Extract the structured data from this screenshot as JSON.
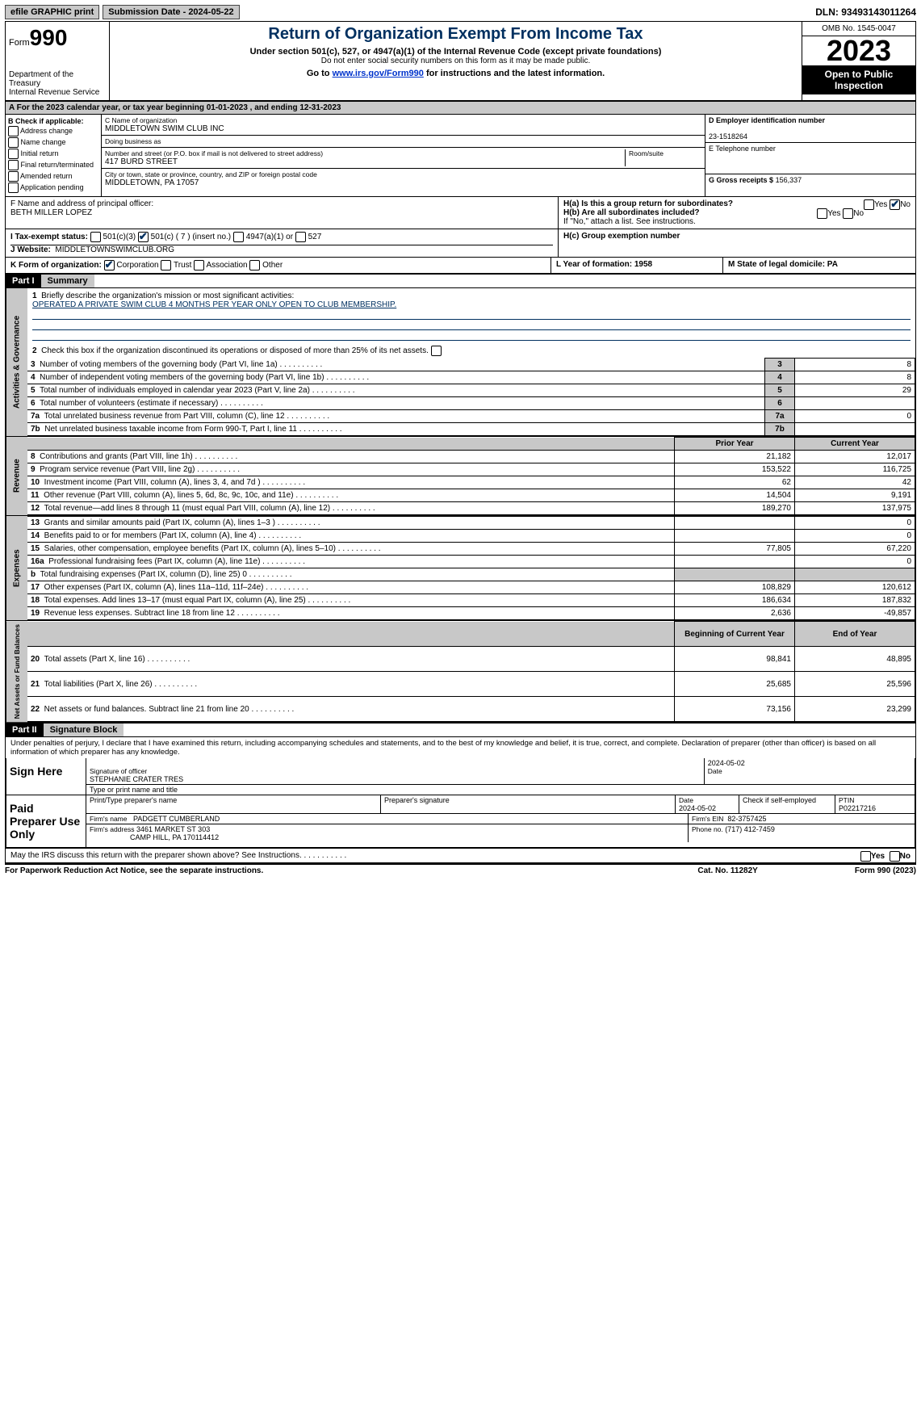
{
  "topbar": {
    "efile": "efile GRAPHIC print",
    "submission": "Submission Date - 2024-05-22",
    "dln": "DLN: 93493143011264"
  },
  "header": {
    "form_word": "Form",
    "form_no": "990",
    "dept1": "Department of the Treasury",
    "dept2": "Internal Revenue Service",
    "title": "Return of Organization Exempt From Income Tax",
    "sub": "Under section 501(c), 527, or 4947(a)(1) of the Internal Revenue Code (except private foundations)",
    "sub2": "Do not enter social security numbers on this form as it may be made public.",
    "goto_pre": "Go to ",
    "goto_link": "www.irs.gov/Form990",
    "goto_post": " for instructions and the latest information.",
    "omb": "OMB No. 1545-0047",
    "year": "2023",
    "inspect": "Open to Public Inspection"
  },
  "A": {
    "text": "For the 2023 calendar year, or tax year beginning 01-01-2023   , and ending 12-31-2023"
  },
  "B": {
    "title": "B Check if applicable:",
    "opts": [
      "Address change",
      "Name change",
      "Initial return",
      "Final return/terminated",
      "Amended return",
      "Application pending"
    ]
  },
  "C": {
    "name_lbl": "C Name of organization",
    "name": "MIDDLETOWN SWIM CLUB INC",
    "dba_lbl": "Doing business as",
    "dba": "",
    "street_lbl": "Number and street (or P.O. box if mail is not delivered to street address)",
    "room_lbl": "Room/suite",
    "street": "417 BURD STREET",
    "city_lbl": "City or town, state or province, country, and ZIP or foreign postal code",
    "city": "MIDDLETOWN, PA  17057"
  },
  "D": {
    "lbl": "D Employer identification number",
    "val": "23-1518264"
  },
  "E": {
    "lbl": "E Telephone number",
    "val": ""
  },
  "G": {
    "lbl": "G Gross receipts $",
    "val": "156,337"
  },
  "F": {
    "lbl": "F  Name and address of principal officer:",
    "val": "BETH MILLER LOPEZ"
  },
  "H": {
    "a": "H(a)  Is this a group return for subordinates?",
    "b": "H(b)  Are all subordinates included?",
    "note": "If \"No,\" attach a list. See instructions.",
    "c": "H(c)  Group exemption number",
    "yes": "Yes",
    "no": "No"
  },
  "I": {
    "lbl": "I   Tax-exempt status:",
    "o1": "501(c)(3)",
    "o2": "501(c) ( 7 ) (insert no.)",
    "o3": "4947(a)(1) or",
    "o4": "527"
  },
  "J": {
    "lbl": "J   Website:",
    "val": "MIDDLETOWNSWIMCLUB.ORG"
  },
  "K": {
    "lbl": "K Form of organization:",
    "o1": "Corporation",
    "o2": "Trust",
    "o3": "Association",
    "o4": "Other"
  },
  "L": {
    "lbl": "L Year of formation: 1958"
  },
  "M": {
    "lbl": "M State of legal domicile: PA"
  },
  "part1": {
    "hdr": "Part I",
    "title": "Summary"
  },
  "summary": {
    "l1_lbl": "Briefly describe the organization's mission or most significant activities:",
    "l1": "OPERATED A PRIVATE SWIM CLUB 4 MONTHS PER YEAR ONLY OPEN TO CLUB MEMBERSHIP.",
    "l2": "Check this box      if the organization discontinued its operations or disposed of more than 25% of its net assets.",
    "rows_gov": [
      {
        "n": "3",
        "t": "Number of voting members of the governing body (Part VI, line 1a)",
        "v": "8"
      },
      {
        "n": "4",
        "t": "Number of independent voting members of the governing body (Part VI, line 1b)",
        "v": "8"
      },
      {
        "n": "5",
        "t": "Total number of individuals employed in calendar year 2023 (Part V, line 2a)",
        "v": "29"
      },
      {
        "n": "6",
        "t": "Total number of volunteers (estimate if necessary)",
        "v": ""
      },
      {
        "n": "7a",
        "t": "Total unrelated business revenue from Part VIII, column (C), line 12",
        "v": "0"
      },
      {
        "n": "7b",
        "t": "Net unrelated business taxable income from Form 990-T, Part I, line 11",
        "v": ""
      }
    ],
    "col_prior": "Prior Year",
    "col_curr": "Current Year",
    "rows_rev": [
      {
        "n": "8",
        "t": "Contributions and grants (Part VIII, line 1h)",
        "p": "21,182",
        "c": "12,017"
      },
      {
        "n": "9",
        "t": "Program service revenue (Part VIII, line 2g)",
        "p": "153,522",
        "c": "116,725"
      },
      {
        "n": "10",
        "t": "Investment income (Part VIII, column (A), lines 3, 4, and 7d )",
        "p": "62",
        "c": "42"
      },
      {
        "n": "11",
        "t": "Other revenue (Part VIII, column (A), lines 5, 6d, 8c, 9c, 10c, and 11e)",
        "p": "14,504",
        "c": "9,191"
      },
      {
        "n": "12",
        "t": "Total revenue—add lines 8 through 11 (must equal Part VIII, column (A), line 12)",
        "p": "189,270",
        "c": "137,975"
      }
    ],
    "rows_exp": [
      {
        "n": "13",
        "t": "Grants and similar amounts paid (Part IX, column (A), lines 1–3 )",
        "p": "",
        "c": "0"
      },
      {
        "n": "14",
        "t": "Benefits paid to or for members (Part IX, column (A), line 4)",
        "p": "",
        "c": "0"
      },
      {
        "n": "15",
        "t": "Salaries, other compensation, employee benefits (Part IX, column (A), lines 5–10)",
        "p": "77,805",
        "c": "67,220"
      },
      {
        "n": "16a",
        "t": "Professional fundraising fees (Part IX, column (A), line 11e)",
        "p": "",
        "c": "0"
      },
      {
        "n": "b",
        "t": "Total fundraising expenses (Part IX, column (D), line 25) 0",
        "p": "GREY",
        "c": "GREY"
      },
      {
        "n": "17",
        "t": "Other expenses (Part IX, column (A), lines 11a–11d, 11f–24e)",
        "p": "108,829",
        "c": "120,612"
      },
      {
        "n": "18",
        "t": "Total expenses. Add lines 13–17 (must equal Part IX, column (A), line 25)",
        "p": "186,634",
        "c": "187,832"
      },
      {
        "n": "19",
        "t": "Revenue less expenses. Subtract line 18 from line 12",
        "p": "2,636",
        "c": "-49,857"
      }
    ],
    "col_begin": "Beginning of Current Year",
    "col_end": "End of Year",
    "rows_net": [
      {
        "n": "20",
        "t": "Total assets (Part X, line 16)",
        "p": "98,841",
        "c": "48,895"
      },
      {
        "n": "21",
        "t": "Total liabilities (Part X, line 26)",
        "p": "25,685",
        "c": "25,596"
      },
      {
        "n": "22",
        "t": "Net assets or fund balances. Subtract line 21 from line 20",
        "p": "73,156",
        "c": "23,299"
      }
    ],
    "side_gov": "Activities & Governance",
    "side_rev": "Revenue",
    "side_exp": "Expenses",
    "side_net": "Net Assets or Fund Balances"
  },
  "part2": {
    "hdr": "Part II",
    "title": "Signature Block"
  },
  "sig": {
    "decl": "Under penalties of perjury, I declare that I have examined this return, including accompanying schedules and statements, and to the best of my knowledge and belief, it is true, correct, and complete. Declaration of preparer (other than officer) is based on all information of which preparer has any knowledge.",
    "sign_here": "Sign Here",
    "paid": "Paid Preparer Use Only",
    "officer_sig_lbl": "Signature of officer",
    "officer_name": "STEPHANIE CRATER  TRES",
    "officer_title_lbl": "Type or print name and title",
    "date_lbl": "Date",
    "date1": "2024-05-02",
    "prep_name_lbl": "Print/Type preparer's name",
    "prep_sig_lbl": "Preparer's signature",
    "date2": "2024-05-02",
    "self_emp": "Check       if self-employed",
    "ptin_lbl": "PTIN",
    "ptin": "P02217216",
    "firm_name_lbl": "Firm's name",
    "firm_name": "PADGETT CUMBERLAND",
    "firm_ein_lbl": "Firm's EIN",
    "firm_ein": "82-3757425",
    "firm_addr_lbl": "Firm's address",
    "firm_addr1": "3461 MARKET ST 303",
    "firm_addr2": "CAMP HILL, PA  170114412",
    "phone_lbl": "Phone no.",
    "phone": "(717) 412-7459",
    "discuss": "May the IRS discuss this return with the preparer shown above? See Instructions.",
    "yes": "Yes",
    "no": "No"
  },
  "footer": {
    "pra": "For Paperwork Reduction Act Notice, see the separate instructions.",
    "cat": "Cat. No. 11282Y",
    "form": "Form 990 (2023)"
  }
}
